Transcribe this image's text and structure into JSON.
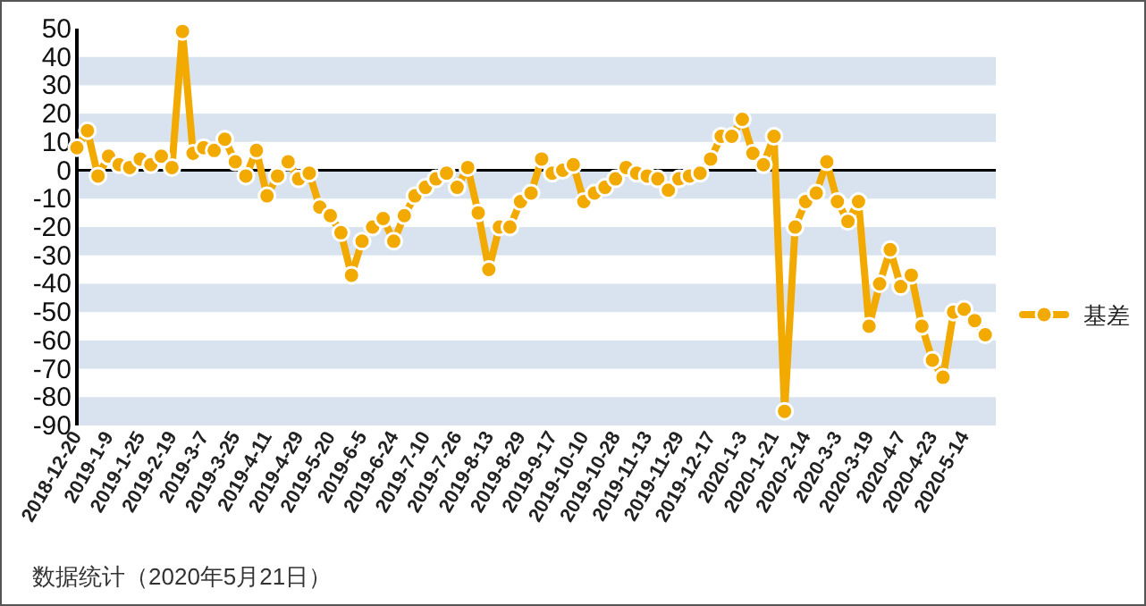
{
  "chart_data": {
    "type": "line",
    "categories": [
      "2018-12-20",
      null,
      null,
      "2019-1-9",
      null,
      null,
      "2019-1-25",
      null,
      null,
      "2019-2-19",
      null,
      null,
      "2019-3-7",
      null,
      null,
      "2019-3-25",
      null,
      null,
      "2019-4-11",
      null,
      null,
      "2019-4-29",
      null,
      null,
      "2019-5-20",
      null,
      null,
      "2019-6-5",
      null,
      null,
      "2019-6-24",
      null,
      null,
      "2019-7-10",
      null,
      null,
      "2019-7-26",
      null,
      null,
      "2019-8-13",
      null,
      null,
      "2019-8-29",
      null,
      null,
      "2019-9-17",
      null,
      null,
      "2019-10-10",
      null,
      null,
      "2019-10-28",
      null,
      null,
      "2019-11-13",
      null,
      null,
      "2019-11-29",
      null,
      null,
      "2019-12-17",
      null,
      null,
      "2020-1-3",
      null,
      null,
      "2020-1-21",
      null,
      null,
      "2020-2-14",
      null,
      null,
      "2020-3-3",
      null,
      null,
      "2020-3-19",
      null,
      null,
      "2020-4-7",
      null,
      null,
      "2020-4-23",
      null,
      null,
      "2020-5-14",
      null,
      null
    ],
    "series": [
      {
        "name": "基差",
        "color": "#f2a900",
        "values": [
          8,
          14,
          -2,
          5,
          2,
          1,
          4,
          2,
          5,
          1,
          49,
          6,
          8,
          7,
          11,
          3,
          -2,
          7,
          -9,
          -2,
          3,
          -3,
          -1,
          -13,
          -16,
          -22,
          -37,
          -25,
          -20,
          -17,
          -25,
          -16,
          -9,
          -6,
          -3,
          -1,
          -6,
          1,
          -15,
          -35,
          -20,
          -20,
          -11,
          -8,
          4,
          -1,
          0,
          2,
          -11,
          -8,
          -6,
          -3,
          1,
          -1,
          -2,
          -3,
          -7,
          -3,
          -2,
          -1,
          4,
          12,
          12,
          18,
          6,
          2,
          12,
          -85,
          -20,
          -11,
          -8,
          3,
          -11,
          -18,
          -11,
          -55,
          -40,
          -28,
          -41,
          -37,
          -55,
          -67,
          -73,
          -50,
          -49,
          -53,
          -58
        ]
      }
    ],
    "ylim": [
      -90,
      50
    ],
    "yticks": [
      -90,
      -80,
      -70,
      -60,
      -50,
      -40,
      -30,
      -20,
      -10,
      0,
      10,
      20,
      30,
      40,
      50
    ],
    "bands": [
      {
        "axis": "y",
        "from": 30,
        "to": 40,
        "color": "#d8e3ef"
      },
      {
        "axis": "y",
        "from": 10,
        "to": 20,
        "color": "#d8e3ef"
      },
      {
        "axis": "y",
        "from": -10,
        "to": 0,
        "color": "#d8e3ef"
      },
      {
        "axis": "y",
        "from": -30,
        "to": -20,
        "color": "#d8e3ef"
      },
      {
        "axis": "y",
        "from": -50,
        "to": -40,
        "color": "#d8e3ef"
      },
      {
        "axis": "y",
        "from": -70,
        "to": -60,
        "color": "#d8e3ef"
      },
      {
        "axis": "y",
        "from": -90,
        "to": -80,
        "color": "#d8e3ef"
      }
    ],
    "ref_lines": [
      {
        "axis": "y",
        "value": 0,
        "color": "#000000"
      }
    ],
    "marker": "circle",
    "legend": "right",
    "annotations": [
      "数据统计（2020年5月21日）"
    ]
  }
}
